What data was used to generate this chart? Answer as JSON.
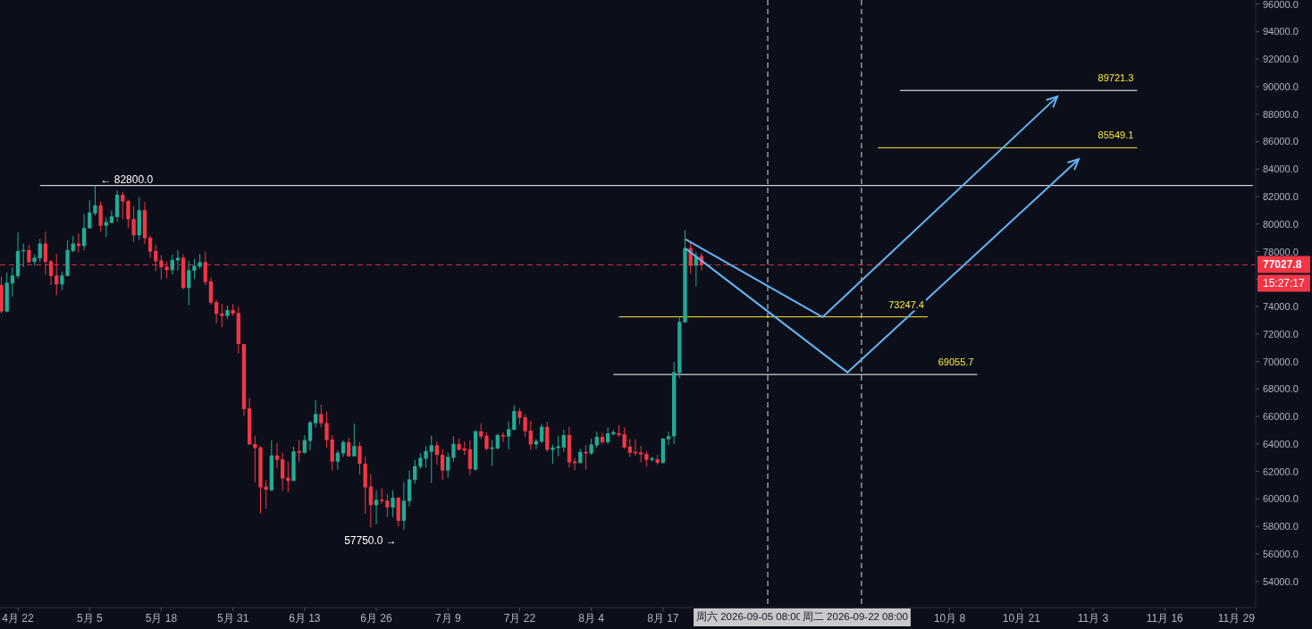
{
  "chart_data": {
    "type": "candlestick",
    "x": [
      "2026-04-19",
      "2026-04-20",
      "2026-04-21",
      "2026-04-22",
      "2026-04-23",
      "2026-04-24",
      "2026-04-25",
      "2026-04-26",
      "2026-04-27",
      "2026-04-28",
      "2026-04-29",
      "2026-04-30",
      "2026-05-01",
      "2026-05-02",
      "2026-05-03",
      "2026-05-04",
      "2026-05-05",
      "2026-05-06",
      "2026-05-07",
      "2026-05-08",
      "2026-05-09",
      "2026-05-10",
      "2026-05-11",
      "2026-05-12",
      "2026-05-13",
      "2026-05-14",
      "2026-05-15",
      "2026-05-16",
      "2026-05-17",
      "2026-05-18",
      "2026-05-19",
      "2026-05-20",
      "2026-05-21",
      "2026-05-22",
      "2026-05-23",
      "2026-05-24",
      "2026-05-25",
      "2026-05-26",
      "2026-05-27",
      "2026-05-28",
      "2026-05-29",
      "2026-05-30",
      "2026-05-31",
      "2026-06-01",
      "2026-06-02",
      "2026-06-03",
      "2026-06-04",
      "2026-06-05",
      "2026-06-06",
      "2026-06-07",
      "2026-06-08",
      "2026-06-09",
      "2026-06-10",
      "2026-06-11",
      "2026-06-12",
      "2026-06-13",
      "2026-06-14",
      "2026-06-15",
      "2026-06-16",
      "2026-06-17",
      "2026-06-18",
      "2026-06-19",
      "2026-06-20",
      "2026-06-21",
      "2026-06-22",
      "2026-06-23",
      "2026-06-24",
      "2026-06-25",
      "2026-06-26",
      "2026-06-27",
      "2026-06-28",
      "2026-06-29",
      "2026-06-30",
      "2026-07-01",
      "2026-07-02",
      "2026-07-03",
      "2026-07-04",
      "2026-07-05",
      "2026-07-06",
      "2026-07-07",
      "2026-07-08",
      "2026-07-09",
      "2026-07-10",
      "2026-07-11",
      "2026-07-12",
      "2026-07-13",
      "2026-07-14",
      "2026-07-15",
      "2026-07-16",
      "2026-07-17",
      "2026-07-18",
      "2026-07-19",
      "2026-07-20",
      "2026-07-21",
      "2026-07-22",
      "2026-07-23",
      "2026-07-24",
      "2026-07-25",
      "2026-07-26",
      "2026-07-27",
      "2026-07-28",
      "2026-07-29",
      "2026-07-30",
      "2026-07-31",
      "2026-08-01",
      "2026-08-02",
      "2026-08-03",
      "2026-08-04",
      "2026-08-05",
      "2026-08-06",
      "2026-08-07",
      "2026-08-08",
      "2026-08-09",
      "2026-08-10",
      "2026-08-11",
      "2026-08-12",
      "2026-08-13",
      "2026-08-14",
      "2026-08-15",
      "2026-08-16",
      "2026-08-17",
      "2026-08-18",
      "2026-08-19",
      "2026-08-20",
      "2026-08-21",
      "2026-08-22",
      "2026-08-23",
      "2026-08-24"
    ],
    "ohlc": [
      [
        75571,
        76173,
        73500,
        73636
      ],
      [
        73636,
        76474,
        73593,
        75743
      ],
      [
        75679,
        76861,
        74711,
        76259
      ],
      [
        76216,
        79398,
        76044,
        78044
      ],
      [
        78022,
        78581,
        76861,
        78109
      ],
      [
        78109,
        78474,
        77141,
        77227
      ],
      [
        77248,
        77764,
        76968,
        77549
      ],
      [
        77506,
        78904,
        77227,
        78581
      ],
      [
        78581,
        79441,
        76324,
        77248
      ],
      [
        77291,
        77399,
        75571,
        76216
      ],
      [
        76259,
        77829,
        74819,
        75614
      ],
      [
        75614,
        76539,
        75184,
        76259
      ],
      [
        76216,
        78839,
        76216,
        78109
      ],
      [
        78044,
        79118,
        77936,
        78581
      ],
      [
        78581,
        79333,
        77936,
        78409
      ],
      [
        78409,
        80731,
        78108,
        79721
      ],
      [
        79699,
        81742,
        79656,
        80839
      ],
      [
        80774,
        82800,
        80624,
        81355
      ],
      [
        81355,
        81634,
        79441,
        79871
      ],
      [
        79871,
        80473,
        79054,
        80151
      ],
      [
        80086,
        80989,
        80043,
        80559
      ],
      [
        80516,
        82451,
        80194,
        82129
      ],
      [
        82129,
        82343,
        80344,
        81634
      ],
      [
        81677,
        81763,
        79699,
        80344
      ],
      [
        80365,
        81311,
        78667,
        79183
      ],
      [
        79183,
        81956,
        78839,
        81011
      ],
      [
        81011,
        81591,
        78538,
        78968
      ],
      [
        79011,
        79161,
        77549,
        78001
      ],
      [
        78044,
        78517,
        76582,
        77291
      ],
      [
        77356,
        77721,
        75958,
        76861
      ],
      [
        76904,
        77291,
        76044,
        76646
      ],
      [
        76646,
        77786,
        76324,
        77399
      ],
      [
        77356,
        78109,
        76603,
        77549
      ],
      [
        77549,
        77807,
        75248,
        75356
      ],
      [
        75356,
        77334,
        74109,
        76646
      ],
      [
        76603,
        77463,
        75999,
        76969
      ],
      [
        76904,
        77829,
        76753,
        77227
      ],
      [
        77227,
        77979,
        75571,
        75786
      ],
      [
        75829,
        76109,
        74131,
        74281
      ],
      [
        74324,
        74496,
        72776,
        73464
      ],
      [
        73486,
        74174,
        72500,
        73313
      ],
      [
        73314,
        74066,
        73099,
        73744
      ],
      [
        73744,
        74174,
        73314,
        73486
      ],
      [
        73529,
        74001,
        70583,
        71271
      ],
      [
        71271,
        71271,
        66047,
        66541
      ],
      [
        66584,
        67358,
        63961,
        63961
      ],
      [
        64004,
        64606,
        61209,
        63703
      ],
      [
        63746,
        63854,
        58952,
        60843
      ],
      [
        60908,
        61381,
        59296,
        60672
      ],
      [
        60629,
        64283,
        60564,
        63166
      ],
      [
        63166,
        64068,
        62241,
        62843
      ],
      [
        62887,
        63359,
        60586,
        61488
      ],
      [
        61553,
        62714,
        60478,
        61316
      ],
      [
        61316,
        63789,
        61316,
        63467
      ],
      [
        63488,
        64283,
        62671,
        63359
      ],
      [
        63359,
        64649,
        63273,
        64283
      ],
      [
        64219,
        65681,
        63531,
        65573
      ],
      [
        65509,
        67186,
        65208,
        66175
      ],
      [
        66175,
        66863,
        65208,
        65509
      ],
      [
        65530,
        66326,
        63746,
        64283
      ],
      [
        64326,
        64649,
        62069,
        62714
      ],
      [
        62714,
        63531,
        62134,
        63359
      ],
      [
        63316,
        64283,
        63058,
        64133
      ],
      [
        64133,
        64434,
        63101,
        63101
      ],
      [
        63101,
        65466,
        63101,
        63854
      ],
      [
        63854,
        64133,
        61768,
        62564
      ],
      [
        62564,
        63101,
        58909,
        60844
      ],
      [
        60908,
        61811,
        57940,
        59554
      ],
      [
        59554,
        60630,
        58157,
        59942
      ],
      [
        59942,
        60780,
        59662,
        59834
      ],
      [
        59877,
        60372,
        58694,
        59383
      ],
      [
        59383,
        60630,
        58694,
        60092
      ],
      [
        60092,
        60157,
        57985,
        58415
      ],
      [
        58415,
        61232,
        57750,
        59877
      ],
      [
        59834,
        62070,
        59447,
        61425
      ],
      [
        61382,
        62844,
        61103,
        62392
      ],
      [
        62349,
        63317,
        62178,
        62994
      ],
      [
        62930,
        63855,
        62285,
        63489
      ],
      [
        63425,
        64607,
        61167,
        63898
      ],
      [
        63898,
        64177,
        62500,
        63209
      ],
      [
        63209,
        63640,
        61382,
        62070
      ],
      [
        62070,
        63360,
        61554,
        63059
      ],
      [
        62994,
        64564,
        62715,
        64005
      ],
      [
        64005,
        64392,
        63532,
        63575
      ],
      [
        63683,
        64177,
        63209,
        63532
      ],
      [
        63618,
        64285,
        61704,
        62178
      ],
      [
        62135,
        64994,
        62070,
        64930
      ],
      [
        64930,
        65467,
        64349,
        64543
      ],
      [
        64607,
        64865,
        63532,
        63640
      ],
      [
        63640,
        64285,
        62392,
        63747
      ],
      [
        63683,
        64757,
        63600,
        64650
      ],
      [
        64650,
        64865,
        64134,
        64543
      ],
      [
        64543,
        65639,
        63597,
        65080
      ],
      [
        65037,
        66822,
        64994,
        66392
      ],
      [
        66392,
        66607,
        65402,
        65897
      ],
      [
        65940,
        66155,
        64500,
        64930
      ],
      [
        64973,
        65682,
        63575,
        63962
      ],
      [
        63962,
        64349,
        63618,
        64220
      ],
      [
        64177,
        65467,
        64070,
        65252
      ],
      [
        65252,
        65617,
        63425,
        63575
      ],
      [
        63575,
        63962,
        62564,
        63747
      ],
      [
        63704,
        64607,
        63102,
        63833
      ],
      [
        63747,
        65037,
        63425,
        64650
      ],
      [
        64650,
        65252,
        62285,
        62672
      ],
      [
        62736,
        62994,
        62091,
        62607
      ],
      [
        62607,
        63639,
        62607,
        63424
      ],
      [
        63424,
        63918,
        62134,
        63316
      ],
      [
        63316,
        64391,
        63209,
        63961
      ],
      [
        63897,
        64886,
        63703,
        64520
      ],
      [
        64520,
        64821,
        64004,
        64133
      ],
      [
        64133,
        65208,
        64004,
        64778
      ],
      [
        64713,
        65036,
        64606,
        64864
      ],
      [
        64778,
        65358,
        64498,
        64649
      ],
      [
        64713,
        65208,
        63638,
        63746
      ],
      [
        63810,
        64348,
        63058,
        63359
      ],
      [
        63423,
        64348,
        63144,
        63316
      ],
      [
        63380,
        63853,
        62671,
        63251
      ],
      [
        63273,
        63466,
        62349,
        62843
      ],
      [
        62843,
        63058,
        62714,
        62972
      ],
      [
        62886,
        63208,
        62499,
        62628
      ],
      [
        62628,
        64434,
        62564,
        64391
      ],
      [
        64348,
        64885,
        63918,
        64563
      ],
      [
        64563,
        69981,
        64004,
        69228
      ],
      [
        69164,
        73314,
        68798,
        72883
      ],
      [
        72840,
        79548,
        72840,
        78258
      ],
      [
        78258,
        78753,
        76388,
        76968
      ],
      [
        76968,
        77979,
        75463,
        77613
      ],
      [
        77678,
        77893,
        76603,
        77028
      ]
    ],
    "colors": [
      "#f23645",
      "#22ab94",
      "#22ab94",
      "#22ab94",
      "#22ab94",
      "#f23645",
      "#22ab94",
      "#22ab94",
      "#f23645",
      "#f23645",
      "#f23645",
      "#22ab94",
      "#22ab94",
      "#22ab94",
      "#f23645",
      "#22ab94",
      "#22ab94",
      "#22ab94",
      "#f23645",
      "#22ab94",
      "#22ab94",
      "#22ab94",
      "#f23645",
      "#f23645",
      "#f23645",
      "#22ab94",
      "#f23645",
      "#f23645",
      "#f23645",
      "#f23645",
      "#f23645",
      "#22ab94",
      "#22ab94",
      "#f23645",
      "#22ab94",
      "#22ab94",
      "#22ab94",
      "#f23645",
      "#f23645",
      "#f23645",
      "#f23645",
      "#22ab94",
      "#f23645",
      "#f23645",
      "#f23645",
      "#f23645",
      "#f23645",
      "#f23645",
      "#f23645",
      "#22ab94",
      "#f23645",
      "#f23645",
      "#f23645",
      "#22ab94",
      "#f23645",
      "#22ab94",
      "#22ab94",
      "#22ab94",
      "#f23645",
      "#f23645",
      "#f23645",
      "#22ab94",
      "#22ab94",
      "#f23645",
      "#22ab94",
      "#f23645",
      "#f23645",
      "#f23645",
      "#22ab94",
      "#f23645",
      "#f23645",
      "#22ab94",
      "#f23645",
      "#22ab94",
      "#22ab94",
      "#22ab94",
      "#22ab94",
      "#22ab94",
      "#22ab94",
      "#f23645",
      "#f23645",
      "#22ab94",
      "#22ab94",
      "#f23645",
      "#f23645",
      "#f23645",
      "#22ab94",
      "#f23645",
      "#f23645",
      "#22ab94",
      "#22ab94",
      "#f23645",
      "#22ab94",
      "#22ab94",
      "#f23645",
      "#f23645",
      "#f23645",
      "#22ab94",
      "#22ab94",
      "#f23645",
      "#22ab94",
      "#22ab94",
      "#22ab94",
      "#f23645",
      "#f23645",
      "#22ab94",
      "#f23645",
      "#22ab94",
      "#22ab94",
      "#f23645",
      "#22ab94",
      "#22ab94",
      "#f23645",
      "#f23645",
      "#f23645",
      "#f23645",
      "#f23645",
      "#f23645",
      "#22ab94",
      "#f23645",
      "#22ab94",
      "#22ab94",
      "#22ab94",
      "#22ab94",
      "#22ab94",
      "#f23645",
      "#22ab94",
      "#f23645"
    ],
    "series": [
      {
        "type": "line",
        "color": "#ffffff",
        "x": [
          "2026-04-26",
          "2026-12-02"
        ],
        "values": [
          82800,
          82800
        ]
      },
      {
        "type": "line",
        "color": "#ffffff",
        "x": [
          "2026-09-29",
          "2026-11-11"
        ],
        "values": [
          89721.3,
          89721.3
        ]
      },
      {
        "type": "line",
        "color": "#ffeb3b",
        "x": [
          "2026-09-25",
          "2026-11-11"
        ],
        "values": [
          85549.1,
          85549.1
        ]
      },
      {
        "type": "line",
        "color": "#ffeb3b",
        "x": [
          "2026-08-09",
          "2026-10-04"
        ],
        "values": [
          73247.4,
          73247.4
        ]
      },
      {
        "type": "line",
        "color": "#ffffff",
        "x": [
          "2026-08-08",
          "2026-10-13"
        ],
        "values": [
          69055.7,
          69055.7
        ]
      }
    ],
    "ref_lines": [
      {
        "axis": "y",
        "value": 77027.8,
        "label": "77027.8",
        "color": "#f23645",
        "line_style": "dashed"
      },
      {
        "axis": "x",
        "value": "2026-09-05",
        "label": "周六 2026-09-05 08:00",
        "color": "#ffffff",
        "line_style": "dashed"
      },
      {
        "axis": "x",
        "value": "2026-09-22",
        "label": "周二 2026-09-22 08:00",
        "color": "#ffffff",
        "line_style": "dashed"
      }
    ],
    "annotations": [
      {
        "text": "← 82800.0",
        "x": "2026-05-06",
        "y": 82800
      },
      {
        "text": "57750.0 →",
        "x": "2026-07-01",
        "y": 57750
      },
      {
        "text": "89721.3",
        "x": "2026-11-11",
        "y": 89721.3
      },
      {
        "text": "85549.1",
        "x": "2026-11-11",
        "y": 85549.1
      },
      {
        "text": "73247.4",
        "x": "2026-10-04",
        "y": 73247.4
      },
      {
        "text": "69055.7",
        "x": "2026-10-13",
        "y": 69055.7
      },
      "15:27:17"
    ],
    "xlim": [
      "2026-04-18T18:00",
      "2026-12-02T12:00"
    ],
    "xticks": [
      {
        "value": "2026-04-22",
        "label": "4月 22"
      },
      {
        "value": "2026-05-05",
        "label": "5月 5"
      },
      {
        "value": "2026-05-18",
        "label": "5月 18"
      },
      {
        "value": "2026-05-31",
        "label": "5月 31"
      },
      {
        "value": "2026-06-13",
        "label": "6月 13"
      },
      {
        "value": "2026-06-26",
        "label": "6月 26"
      },
      {
        "value": "2026-07-09",
        "label": "7月 9"
      },
      {
        "value": "2026-07-22",
        "label": "7月 22"
      },
      {
        "value": "2026-08-04",
        "label": "8月 4"
      },
      {
        "value": "2026-08-17",
        "label": "8月 17"
      },
      {
        "value": "2026-10-08",
        "label": "10月 8"
      },
      {
        "value": "2026-10-21",
        "label": "10月 21"
      },
      {
        "value": "2026-11-03",
        "label": "11月 3"
      },
      {
        "value": "2026-11-16",
        "label": "11月 16"
      },
      {
        "value": "2026-11-29",
        "label": "11月 29"
      }
    ],
    "ylim": [
      52100,
      96300
    ],
    "yticks": [
      {
        "value": 54000,
        "label": "54000.0"
      },
      {
        "value": 56000,
        "label": "56000.0"
      },
      {
        "value": 58000,
        "label": "58000.0"
      },
      {
        "value": 60000,
        "label": "60000.0"
      },
      {
        "value": 62000,
        "label": "62000.0"
      },
      {
        "value": 64000,
        "label": "64000.0"
      },
      {
        "value": 66000,
        "label": "66000.0"
      },
      {
        "value": 68000,
        "label": "68000.0"
      },
      {
        "value": 70000,
        "label": "70000.0"
      },
      {
        "value": 72000,
        "label": "72000.0"
      },
      {
        "value": 74000,
        "label": "74000.0"
      },
      {
        "value": 76000,
        "label": null
      },
      {
        "value": 78000,
        "label": "78000.0"
      },
      {
        "value": 80000,
        "label": "80000.0"
      },
      {
        "value": 82000,
        "label": "82000.0"
      },
      {
        "value": 84000,
        "label": "84000.0"
      },
      {
        "value": 86000,
        "label": "86000.0"
      },
      {
        "value": 88000,
        "label": "88000.0"
      },
      {
        "value": 90000,
        "label": "90000.0"
      },
      {
        "value": 92000,
        "label": "92000.0"
      },
      {
        "value": 94000,
        "label": "94000.0"
      },
      {
        "value": 96000,
        "label": "96000.0"
      }
    ],
    "grid": false
  }
}
